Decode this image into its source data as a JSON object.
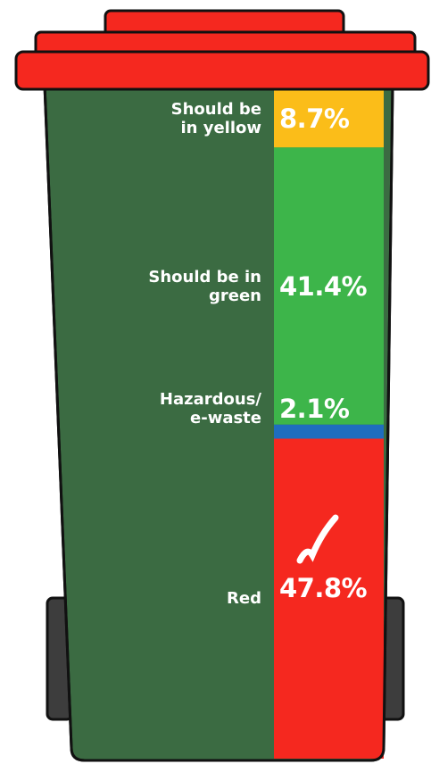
{
  "chart_data": {
    "type": "bar",
    "stacked": true,
    "series": [
      {
        "name": [
          "Should be",
          "in yellow"
        ],
        "color": "#fbbd19",
        "values": [
          8.7
        ],
        "value_labels": [
          "8.7%"
        ]
      },
      {
        "name": [
          "Should be in",
          "green"
        ],
        "color": "#3db54a",
        "values": [
          41.4
        ],
        "value_labels": [
          "41.4%"
        ]
      },
      {
        "name": [
          "Hazardous/",
          "e-waste"
        ],
        "color": "#1f6dbf",
        "values": [
          2.1
        ],
        "value_labels": [
          "2.1%"
        ]
      },
      {
        "name": [
          "Red"
        ],
        "color": "#f5281f",
        "values": [
          47.8
        ],
        "value_labels": [
          "47.8%"
        ]
      }
    ]
  }
}
